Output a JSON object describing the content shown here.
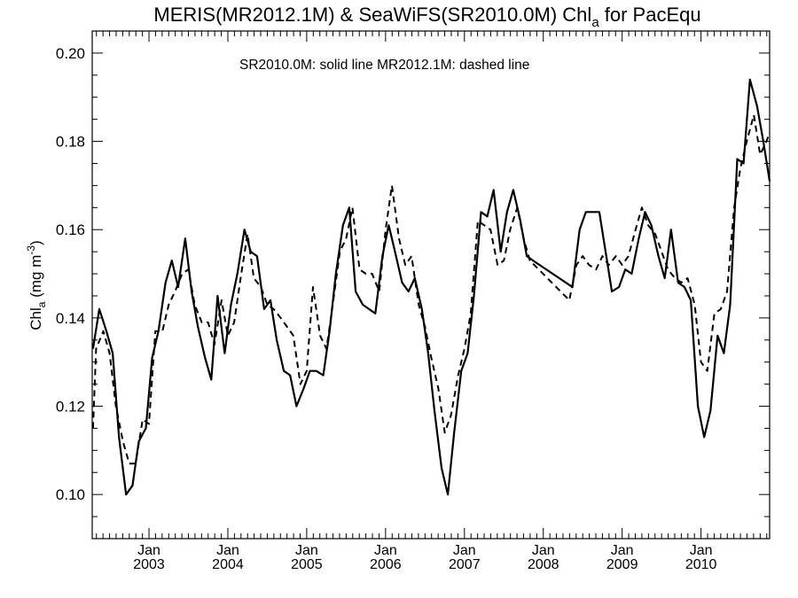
{
  "chart_data": {
    "type": "line",
    "title": {
      "prefix": "MERIS(MR2012.1M) & SeaWiFS(SR2010.0M)  Chl",
      "subscript": "a",
      "suffix": " for PacEqu"
    },
    "annotation": "SR2010.0M: solid line   MR2012.1M: dashed line",
    "ylabel": {
      "prefix": "Chl",
      "subscript": "a",
      "unit_prefix": " (mg m",
      "unit_superscript": "-3",
      "unit_suffix": ")"
    },
    "ylim": [
      0.09,
      0.205
    ],
    "xlim": [
      2002.28,
      2010.87
    ],
    "y_ticks": [
      {
        "value": 0.1,
        "label": "0.10"
      },
      {
        "value": 0.12,
        "label": "0.12"
      },
      {
        "value": 0.14,
        "label": "0.14"
      },
      {
        "value": 0.16,
        "label": "0.16"
      },
      {
        "value": 0.18,
        "label": "0.18"
      },
      {
        "value": 0.2,
        "label": "0.20"
      }
    ],
    "x_ticks": [
      {
        "value": 2003.0,
        "month": "Jan",
        "year": "2003"
      },
      {
        "value": 2004.0,
        "month": "Jan",
        "year": "2004"
      },
      {
        "value": 2005.0,
        "month": "Jan",
        "year": "2005"
      },
      {
        "value": 2006.0,
        "month": "Jan",
        "year": "2006"
      },
      {
        "value": 2007.0,
        "month": "Jan",
        "year": "2007"
      },
      {
        "value": 2008.0,
        "month": "Jan",
        "year": "2008"
      },
      {
        "value": 2009.0,
        "month": "Jan",
        "year": "2009"
      },
      {
        "value": 2010.0,
        "month": "Jan",
        "year": "2010"
      }
    ],
    "grid": false,
    "series": [
      {
        "style": "solid",
        "points": [
          [
            2002.29,
            0.133
          ],
          [
            2002.37,
            0.142
          ],
          [
            2002.46,
            0.137
          ],
          [
            2002.54,
            0.132
          ],
          [
            2002.62,
            0.113
          ],
          [
            2002.71,
            0.1
          ],
          [
            2002.79,
            0.102
          ],
          [
            2002.87,
            0.112
          ],
          [
            2002.96,
            0.115
          ],
          [
            2003.04,
            0.131
          ],
          [
            2003.12,
            0.137
          ],
          [
            2003.21,
            0.148
          ],
          [
            2003.29,
            0.153
          ],
          [
            2003.37,
            0.147
          ],
          [
            2003.46,
            0.158
          ],
          [
            2003.54,
            0.146
          ],
          [
            2003.62,
            0.138
          ],
          [
            2003.71,
            0.131
          ],
          [
            2003.79,
            0.126
          ],
          [
            2003.87,
            0.145
          ],
          [
            2003.96,
            0.132
          ],
          [
            2004.04,
            0.143
          ],
          [
            2004.12,
            0.15
          ],
          [
            2004.21,
            0.16
          ],
          [
            2004.29,
            0.155
          ],
          [
            2004.37,
            0.154
          ],
          [
            2004.46,
            0.142
          ],
          [
            2004.54,
            0.144
          ],
          [
            2004.62,
            0.135
          ],
          [
            2004.71,
            0.128
          ],
          [
            2004.79,
            0.127
          ],
          [
            2004.87,
            0.12
          ],
          [
            2004.96,
            0.124
          ],
          [
            2005.04,
            0.128
          ],
          [
            2005.12,
            0.128
          ],
          [
            2005.21,
            0.127
          ],
          [
            2005.29,
            0.137
          ],
          [
            2005.37,
            0.15
          ],
          [
            2005.46,
            0.161
          ],
          [
            2005.54,
            0.165
          ],
          [
            2005.62,
            0.146
          ],
          [
            2005.71,
            0.143
          ],
          [
            2005.79,
            0.142
          ],
          [
            2005.87,
            0.141
          ],
          [
            2005.96,
            0.154
          ],
          [
            2006.04,
            0.161
          ],
          [
            2006.12,
            0.155
          ],
          [
            2006.21,
            0.148
          ],
          [
            2006.29,
            0.146
          ],
          [
            2006.37,
            0.149
          ],
          [
            2006.46,
            0.142
          ],
          [
            2006.54,
            0.132
          ],
          [
            2006.62,
            0.119
          ],
          [
            2006.71,
            0.106
          ],
          [
            2006.79,
            0.1
          ],
          [
            2006.87,
            0.114
          ],
          [
            2006.96,
            0.128
          ],
          [
            2007.04,
            0.132
          ],
          [
            2007.12,
            0.145
          ],
          [
            2007.21,
            0.164
          ],
          [
            2007.29,
            0.163
          ],
          [
            2007.37,
            0.169
          ],
          [
            2007.46,
            0.155
          ],
          [
            2007.54,
            0.164
          ],
          [
            2007.62,
            0.169
          ],
          [
            2007.71,
            0.162
          ],
          [
            2007.79,
            0.154
          ],
          [
            2007.87,
            0.153
          ],
          [
            2008.37,
            0.147
          ],
          [
            2008.46,
            0.16
          ],
          [
            2008.54,
            0.164
          ],
          [
            2008.71,
            0.164
          ],
          [
            2008.79,
            0.155
          ],
          [
            2008.87,
            0.146
          ],
          [
            2008.96,
            0.147
          ],
          [
            2009.04,
            0.151
          ],
          [
            2009.12,
            0.15
          ],
          [
            2009.21,
            0.158
          ],
          [
            2009.29,
            0.164
          ],
          [
            2009.37,
            0.161
          ],
          [
            2009.46,
            0.154
          ],
          [
            2009.54,
            0.149
          ],
          [
            2009.62,
            0.16
          ],
          [
            2009.71,
            0.148
          ],
          [
            2009.79,
            0.147
          ],
          [
            2009.87,
            0.144
          ],
          [
            2009.96,
            0.12
          ],
          [
            2010.04,
            0.113
          ],
          [
            2010.12,
            0.119
          ],
          [
            2010.21,
            0.136
          ],
          [
            2010.29,
            0.132
          ],
          [
            2010.37,
            0.143
          ],
          [
            2010.46,
            0.176
          ],
          [
            2010.54,
            0.175
          ],
          [
            2010.62,
            0.194
          ],
          [
            2010.71,
            0.188
          ],
          [
            2010.79,
            0.18
          ],
          [
            2010.87,
            0.171
          ]
        ]
      },
      {
        "style": "dashed",
        "points": [
          [
            2002.29,
            0.115
          ],
          [
            2002.33,
            0.133
          ],
          [
            2002.42,
            0.137
          ],
          [
            2002.5,
            0.132
          ],
          [
            2002.58,
            0.12
          ],
          [
            2002.67,
            0.112
          ],
          [
            2002.75,
            0.107
          ],
          [
            2002.83,
            0.107
          ],
          [
            2002.92,
            0.117
          ],
          [
            2003.0,
            0.116
          ],
          [
            2003.08,
            0.137
          ],
          [
            2003.17,
            0.137
          ],
          [
            2003.25,
            0.143
          ],
          [
            2003.33,
            0.146
          ],
          [
            2003.42,
            0.15
          ],
          [
            2003.5,
            0.151
          ],
          [
            2003.58,
            0.143
          ],
          [
            2003.67,
            0.139
          ],
          [
            2003.75,
            0.139
          ],
          [
            2003.83,
            0.134
          ],
          [
            2003.92,
            0.144
          ],
          [
            2004.0,
            0.136
          ],
          [
            2004.08,
            0.139
          ],
          [
            2004.17,
            0.15
          ],
          [
            2004.25,
            0.159
          ],
          [
            2004.33,
            0.149
          ],
          [
            2004.42,
            0.147
          ],
          [
            2004.5,
            0.143
          ],
          [
            2004.58,
            0.142
          ],
          [
            2004.67,
            0.14
          ],
          [
            2004.75,
            0.138
          ],
          [
            2004.83,
            0.136
          ],
          [
            2004.92,
            0.125
          ],
          [
            2005.0,
            0.128
          ],
          [
            2005.08,
            0.147
          ],
          [
            2005.17,
            0.136
          ],
          [
            2005.25,
            0.133
          ],
          [
            2005.33,
            0.143
          ],
          [
            2005.42,
            0.155
          ],
          [
            2005.5,
            0.158
          ],
          [
            2005.58,
            0.165
          ],
          [
            2005.67,
            0.151
          ],
          [
            2005.75,
            0.15
          ],
          [
            2005.83,
            0.15
          ],
          [
            2005.92,
            0.146
          ],
          [
            2006.0,
            0.16
          ],
          [
            2006.08,
            0.17
          ],
          [
            2006.17,
            0.158
          ],
          [
            2006.25,
            0.152
          ],
          [
            2006.33,
            0.154
          ],
          [
            2006.42,
            0.143
          ],
          [
            2006.5,
            0.138
          ],
          [
            2006.58,
            0.131
          ],
          [
            2006.67,
            0.124
          ],
          [
            2006.75,
            0.114
          ],
          [
            2006.83,
            0.118
          ],
          [
            2006.92,
            0.127
          ],
          [
            2007.0,
            0.133
          ],
          [
            2007.08,
            0.141
          ],
          [
            2007.17,
            0.162
          ],
          [
            2007.25,
            0.161
          ],
          [
            2007.33,
            0.16
          ],
          [
            2007.42,
            0.152
          ],
          [
            2007.5,
            0.153
          ],
          [
            2007.58,
            0.16
          ],
          [
            2007.67,
            0.165
          ],
          [
            2007.75,
            0.158
          ],
          [
            2007.83,
            0.153
          ],
          [
            2008.33,
            0.144
          ],
          [
            2008.42,
            0.152
          ],
          [
            2008.5,
            0.154
          ],
          [
            2008.58,
            0.152
          ],
          [
            2008.67,
            0.151
          ],
          [
            2008.75,
            0.154
          ],
          [
            2008.83,
            0.152
          ],
          [
            2008.92,
            0.154
          ],
          [
            2009.0,
            0.152
          ],
          [
            2009.08,
            0.154
          ],
          [
            2009.17,
            0.16
          ],
          [
            2009.25,
            0.165
          ],
          [
            2009.33,
            0.161
          ],
          [
            2009.42,
            0.159
          ],
          [
            2009.5,
            0.155
          ],
          [
            2009.58,
            0.151
          ],
          [
            2009.67,
            0.149
          ],
          [
            2009.75,
            0.148
          ],
          [
            2009.83,
            0.149
          ],
          [
            2009.92,
            0.143
          ],
          [
            2010.0,
            0.13
          ],
          [
            2010.08,
            0.128
          ],
          [
            2010.17,
            0.141
          ],
          [
            2010.25,
            0.142
          ],
          [
            2010.33,
            0.146
          ],
          [
            2010.42,
            0.165
          ],
          [
            2010.5,
            0.174
          ],
          [
            2010.58,
            0.18
          ],
          [
            2010.67,
            0.186
          ],
          [
            2010.75,
            0.177
          ],
          [
            2010.83,
            0.18
          ],
          [
            2010.87,
            0.182
          ]
        ]
      }
    ]
  }
}
